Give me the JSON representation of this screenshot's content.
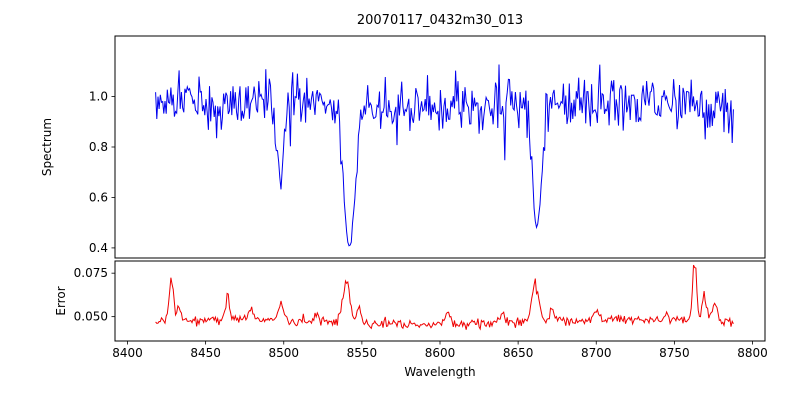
{
  "chart_data": {
    "type": "line",
    "title": "20070117_0432m30_013",
    "xlabel": "Wavelength",
    "grid": false,
    "legend": "none",
    "xlim": [
      8392,
      8808
    ],
    "x_ticks": [
      8400,
      8450,
      8500,
      8550,
      8600,
      8650,
      8700,
      8750,
      8800
    ],
    "x_tick_labels": [
      "8400",
      "8450",
      "8500",
      "8550",
      "8600",
      "8650",
      "8700",
      "8750",
      "8800"
    ],
    "x_data_range": [
      8418,
      8788
    ],
    "x_step": 0.75,
    "seed": 1337,
    "subplots": [
      {
        "name": "spectrum",
        "ylabel": "Spectrum",
        "line_color": "#0000ee",
        "ylim": [
          0.36,
          1.24
        ],
        "y_ticks": [
          0.4,
          0.6,
          0.8,
          1.0
        ],
        "y_tick_labels": [
          "0.4",
          "0.6",
          "0.8",
          "1.0"
        ],
        "baseline": 0.965,
        "noise_sigma": 0.052,
        "wave_amp": 0.015,
        "noise_peak_high": 1.17,
        "absorption_lines": [
          {
            "center": 8498.0,
            "width": 2.2,
            "depth": 0.32,
            "min_value": 0.64
          },
          {
            "center": 8542.1,
            "width": 3.2,
            "depth": 0.55,
            "min_value": 0.41
          },
          {
            "center": 8662.1,
            "width": 3.0,
            "depth": 0.5,
            "min_value": 0.46
          }
        ]
      },
      {
        "name": "error",
        "ylabel": "Error",
        "line_color": "#ee0000",
        "ylim": [
          0.036,
          0.082
        ],
        "y_ticks": [
          0.05,
          0.075
        ],
        "y_tick_labels": [
          "0.050",
          "0.075"
        ],
        "baseline": 0.047,
        "noise_sigma": 0.0013,
        "wave_amp": 0.0012,
        "spikes": [
          {
            "center": 8428,
            "height": 0.023,
            "width": 1.4
          },
          {
            "center": 8433,
            "height": 0.008,
            "width": 1.2
          },
          {
            "center": 8464,
            "height": 0.014,
            "width": 1.4
          },
          {
            "center": 8479,
            "height": 0.006,
            "width": 1.5
          },
          {
            "center": 8498,
            "height": 0.009,
            "width": 1.8
          },
          {
            "center": 8521,
            "height": 0.005,
            "width": 1.5
          },
          {
            "center": 8540,
            "height": 0.022,
            "width": 2.4
          },
          {
            "center": 8548,
            "height": 0.008,
            "width": 1.4
          },
          {
            "center": 8605,
            "height": 0.006,
            "width": 1.8
          },
          {
            "center": 8640,
            "height": 0.006,
            "width": 1.5
          },
          {
            "center": 8661,
            "height": 0.021,
            "width": 2.2
          },
          {
            "center": 8672,
            "height": 0.007,
            "width": 1.4
          },
          {
            "center": 8700,
            "height": 0.005,
            "width": 1.5
          },
          {
            "center": 8745,
            "height": 0.005,
            "width": 1.5
          },
          {
            "center": 8763,
            "height": 0.034,
            "width": 1.2
          },
          {
            "center": 8769,
            "height": 0.016,
            "width": 1.4
          },
          {
            "center": 8776,
            "height": 0.01,
            "width": 1.5
          }
        ]
      }
    ]
  }
}
